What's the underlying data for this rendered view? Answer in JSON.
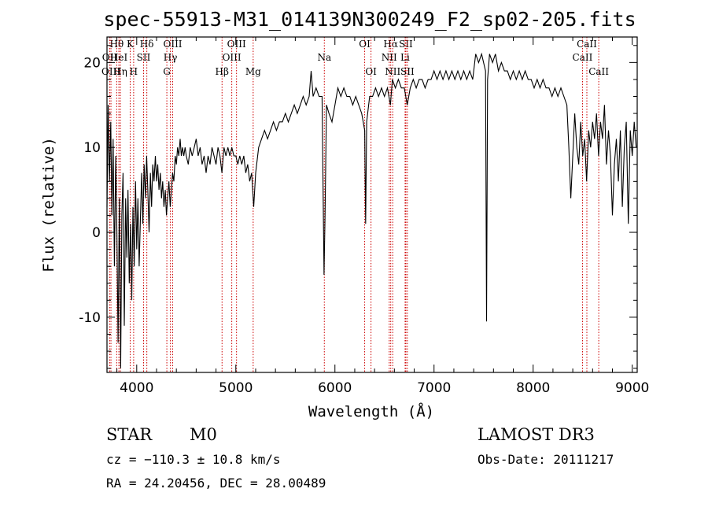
{
  "chart_data": {
    "type": "line",
    "title": "spec-55913-M31_014139N300249_F2_sp02-205.fits",
    "xlabel": "Wavelength (Å)",
    "ylabel": "Flux (relative)",
    "xlim": [
      3700,
      9050
    ],
    "ylim": [
      -16.5,
      23
    ],
    "xticks": [
      4000,
      5000,
      6000,
      7000,
      8000,
      9000
    ],
    "yticks": [
      -10,
      0,
      10,
      20
    ],
    "grid": false,
    "series": [
      {
        "values": [
          [
            3700,
            3
          ],
          [
            3712,
            15
          ],
          [
            3725,
            6
          ],
          [
            3738,
            13
          ],
          [
            3750,
            2
          ],
          [
            3762,
            11
          ],
          [
            3775,
            -4
          ],
          [
            3788,
            9
          ],
          [
            3800,
            0
          ],
          [
            3812,
            -13
          ],
          [
            3825,
            4
          ],
          [
            3838,
            -16
          ],
          [
            3850,
            2
          ],
          [
            3862,
            7
          ],
          [
            3875,
            -11
          ],
          [
            3888,
            4
          ],
          [
            3900,
            -3
          ],
          [
            3912,
            5
          ],
          [
            3925,
            -6
          ],
          [
            3938,
            1
          ],
          [
            3950,
            -8
          ],
          [
            3962,
            3
          ],
          [
            3975,
            -4
          ],
          [
            3988,
            6
          ],
          [
            4000,
            -2
          ],
          [
            4012,
            4
          ],
          [
            4025,
            -4
          ],
          [
            4038,
            2
          ],
          [
            4050,
            7
          ],
          [
            4062,
            1
          ],
          [
            4075,
            8
          ],
          [
            4088,
            4
          ],
          [
            4100,
            9
          ],
          [
            4112,
            5
          ],
          [
            4125,
            0
          ],
          [
            4138,
            7
          ],
          [
            4150,
            3
          ],
          [
            4162,
            8
          ],
          [
            4175,
            6
          ],
          [
            4188,
            9
          ],
          [
            4200,
            6
          ],
          [
            4212,
            8
          ],
          [
            4225,
            5
          ],
          [
            4238,
            7
          ],
          [
            4250,
            4
          ],
          [
            4262,
            6
          ],
          [
            4275,
            3
          ],
          [
            4288,
            5
          ],
          [
            4300,
            2
          ],
          [
            4312,
            4
          ],
          [
            4325,
            6
          ],
          [
            4338,
            3
          ],
          [
            4350,
            5
          ],
          [
            4362,
            7
          ],
          [
            4375,
            6
          ],
          [
            4388,
            9
          ],
          [
            4400,
            8
          ],
          [
            4412,
            10
          ],
          [
            4425,
            9
          ],
          [
            4438,
            11
          ],
          [
            4450,
            9
          ],
          [
            4462,
            10
          ],
          [
            4475,
            9
          ],
          [
            4488,
            10
          ],
          [
            4500,
            9
          ],
          [
            4520,
            8
          ],
          [
            4540,
            10
          ],
          [
            4560,
            9
          ],
          [
            4580,
            10
          ],
          [
            4600,
            11
          ],
          [
            4620,
            9
          ],
          [
            4640,
            10
          ],
          [
            4660,
            8
          ],
          [
            4680,
            9
          ],
          [
            4700,
            7
          ],
          [
            4720,
            9
          ],
          [
            4740,
            8
          ],
          [
            4760,
            10
          ],
          [
            4780,
            9
          ],
          [
            4800,
            8
          ],
          [
            4820,
            10
          ],
          [
            4840,
            9
          ],
          [
            4860,
            7
          ],
          [
            4880,
            10
          ],
          [
            4900,
            9
          ],
          [
            4920,
            10
          ],
          [
            4940,
            9
          ],
          [
            4960,
            10
          ],
          [
            4980,
            9
          ],
          [
            5000,
            9
          ],
          [
            5020,
            8
          ],
          [
            5040,
            9
          ],
          [
            5060,
            8
          ],
          [
            5080,
            9
          ],
          [
            5100,
            7
          ],
          [
            5120,
            8
          ],
          [
            5140,
            6
          ],
          [
            5160,
            7
          ],
          [
            5180,
            3
          ],
          [
            5200,
            7
          ],
          [
            5230,
            10
          ],
          [
            5260,
            11
          ],
          [
            5290,
            12
          ],
          [
            5320,
            11
          ],
          [
            5350,
            12
          ],
          [
            5380,
            13
          ],
          [
            5410,
            12
          ],
          [
            5440,
            13
          ],
          [
            5470,
            13
          ],
          [
            5500,
            14
          ],
          [
            5530,
            13
          ],
          [
            5560,
            14
          ],
          [
            5590,
            15
          ],
          [
            5620,
            14
          ],
          [
            5650,
            15
          ],
          [
            5680,
            16
          ],
          [
            5710,
            15
          ],
          [
            5740,
            16
          ],
          [
            5760,
            19
          ],
          [
            5780,
            16
          ],
          [
            5810,
            17
          ],
          [
            5840,
            16
          ],
          [
            5870,
            16
          ],
          [
            5890,
            -5
          ],
          [
            5900,
            2
          ],
          [
            5915,
            15
          ],
          [
            5940,
            14
          ],
          [
            5970,
            13
          ],
          [
            6000,
            15
          ],
          [
            6030,
            17
          ],
          [
            6060,
            16
          ],
          [
            6090,
            17
          ],
          [
            6120,
            16
          ],
          [
            6150,
            16
          ],
          [
            6180,
            15
          ],
          [
            6210,
            16
          ],
          [
            6240,
            15
          ],
          [
            6270,
            14
          ],
          [
            6300,
            12
          ],
          [
            6310,
            1
          ],
          [
            6320,
            13
          ],
          [
            6350,
            16
          ],
          [
            6380,
            16
          ],
          [
            6410,
            17
          ],
          [
            6440,
            16
          ],
          [
            6470,
            17
          ],
          [
            6500,
            16
          ],
          [
            6530,
            17
          ],
          [
            6560,
            15
          ],
          [
            6580,
            18
          ],
          [
            6610,
            17
          ],
          [
            6640,
            18
          ],
          [
            6670,
            17
          ],
          [
            6700,
            17
          ],
          [
            6730,
            15
          ],
          [
            6760,
            17
          ],
          [
            6790,
            18
          ],
          [
            6820,
            17
          ],
          [
            6850,
            18
          ],
          [
            6880,
            18
          ],
          [
            6910,
            17
          ],
          [
            6940,
            18
          ],
          [
            6970,
            18
          ],
          [
            7000,
            19
          ],
          [
            7030,
            18
          ],
          [
            7060,
            19
          ],
          [
            7090,
            18
          ],
          [
            7120,
            19
          ],
          [
            7150,
            18
          ],
          [
            7180,
            19
          ],
          [
            7210,
            18
          ],
          [
            7240,
            19
          ],
          [
            7270,
            18
          ],
          [
            7300,
            19
          ],
          [
            7330,
            18
          ],
          [
            7360,
            19
          ],
          [
            7390,
            18
          ],
          [
            7420,
            21
          ],
          [
            7450,
            20
          ],
          [
            7480,
            21
          ],
          [
            7500,
            20
          ],
          [
            7520,
            19
          ],
          [
            7530,
            -10.5
          ],
          [
            7540,
            18
          ],
          [
            7560,
            21
          ],
          [
            7590,
            20
          ],
          [
            7620,
            21
          ],
          [
            7650,
            19
          ],
          [
            7680,
            20
          ],
          [
            7710,
            19
          ],
          [
            7740,
            19
          ],
          [
            7770,
            18
          ],
          [
            7800,
            19
          ],
          [
            7830,
            18
          ],
          [
            7860,
            19
          ],
          [
            7890,
            18
          ],
          [
            7920,
            19
          ],
          [
            7950,
            18
          ],
          [
            7980,
            18
          ],
          [
            8010,
            17
          ],
          [
            8040,
            18
          ],
          [
            8070,
            17
          ],
          [
            8100,
            18
          ],
          [
            8130,
            17
          ],
          [
            8160,
            17
          ],
          [
            8190,
            16
          ],
          [
            8220,
            17
          ],
          [
            8250,
            16
          ],
          [
            8280,
            17
          ],
          [
            8310,
            16
          ],
          [
            8340,
            15
          ],
          [
            8360,
            10
          ],
          [
            8380,
            4
          ],
          [
            8400,
            9
          ],
          [
            8420,
            14
          ],
          [
            8440,
            10
          ],
          [
            8460,
            8
          ],
          [
            8480,
            13
          ],
          [
            8500,
            9
          ],
          [
            8520,
            11
          ],
          [
            8540,
            6
          ],
          [
            8560,
            12
          ],
          [
            8580,
            10
          ],
          [
            8600,
            13
          ],
          [
            8620,
            11
          ],
          [
            8640,
            14
          ],
          [
            8660,
            9
          ],
          [
            8680,
            13
          ],
          [
            8700,
            11
          ],
          [
            8720,
            15
          ],
          [
            8740,
            8
          ],
          [
            8760,
            12
          ],
          [
            8780,
            9
          ],
          [
            8800,
            2
          ],
          [
            8820,
            8
          ],
          [
            8840,
            11
          ],
          [
            8860,
            6
          ],
          [
            8880,
            12
          ],
          [
            8900,
            3
          ],
          [
            8920,
            10
          ],
          [
            8940,
            13
          ],
          [
            8960,
            1
          ],
          [
            8980,
            12
          ],
          [
            9000,
            9
          ],
          [
            9020,
            13
          ],
          [
            9040,
            10
          ]
        ]
      }
    ],
    "line_markers": [
      {
        "label": "Hθ",
        "x": 3798,
        "row": 0
      },
      {
        "label": "OII",
        "x": 3727,
        "row": 1
      },
      {
        "label": "OIII",
        "x": 3740,
        "row": 2
      },
      {
        "label": "HeI",
        "x": 3820,
        "row": 1
      },
      {
        "label": "Hη",
        "x": 3835,
        "row": 2
      },
      {
        "label": "K",
        "x": 3934,
        "row": 0
      },
      {
        "label": "SII",
        "x": 4069,
        "row": 1
      },
      {
        "label": "H",
        "x": 3969,
        "row": 2
      },
      {
        "label": "Hδ",
        "x": 4102,
        "row": 0
      },
      {
        "label": "OIII",
        "x": 4363,
        "row": 0
      },
      {
        "label": "Hγ",
        "x": 4340,
        "row": 1
      },
      {
        "label": "G",
        "x": 4304,
        "row": 2
      },
      {
        "label": "Hβ",
        "x": 4861,
        "row": 2
      },
      {
        "label": "OIII",
        "x": 5007,
        "row": 0
      },
      {
        "label": "OIII",
        "x": 4959,
        "row": 1
      },
      {
        "label": "Mg",
        "x": 5175,
        "row": 2
      },
      {
        "label": "Na",
        "x": 5893,
        "row": 1
      },
      {
        "label": "OI",
        "x": 6300,
        "row": 0
      },
      {
        "label": "OI",
        "x": 6364,
        "row": 2
      },
      {
        "label": "Hα",
        "x": 6563,
        "row": 0
      },
      {
        "label": "SII",
        "x": 6716,
        "row": 0
      },
      {
        "label": "NII",
        "x": 6548,
        "row": 1
      },
      {
        "label": "Li",
        "x": 6708,
        "row": 1
      },
      {
        "label": "NII",
        "x": 6583,
        "row": 2
      },
      {
        "label": "SII",
        "x": 6731,
        "row": 2
      },
      {
        "label": "CaII",
        "x": 8542,
        "row": 0
      },
      {
        "label": "CaII",
        "x": 8498,
        "row": 1
      },
      {
        "label": "CaII",
        "x": 8662,
        "row": 2
      }
    ]
  },
  "info": {
    "class": "STAR",
    "subclass": "M0",
    "survey": "LAMOST DR3",
    "cz": "cz = −110.3 ± 10.8 km/s",
    "obs_date": "Obs-Date: 20111217",
    "coords": "RA =  24.20456, DEC =  28.00489"
  },
  "colors": {
    "spectrum": "#000000",
    "marker_line": "#cc0000",
    "axes": "#000000",
    "background": "#ffffff"
  }
}
